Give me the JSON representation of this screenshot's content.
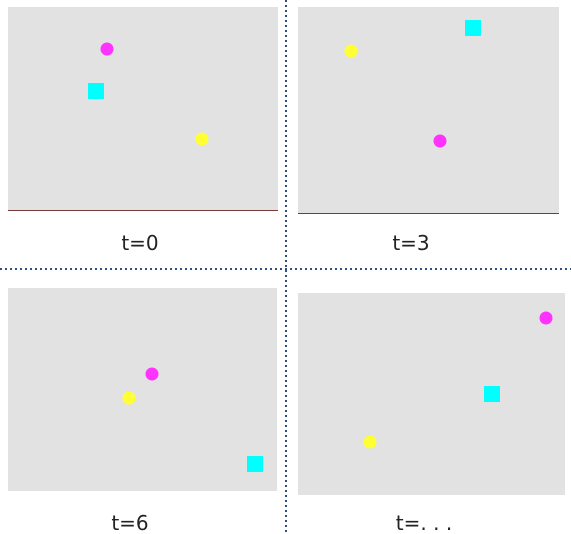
{
  "panels": [
    {
      "label": "t=0"
    },
    {
      "label": "t=3"
    },
    {
      "label": "t=6"
    },
    {
      "label": "t=. . ."
    }
  ]
}
